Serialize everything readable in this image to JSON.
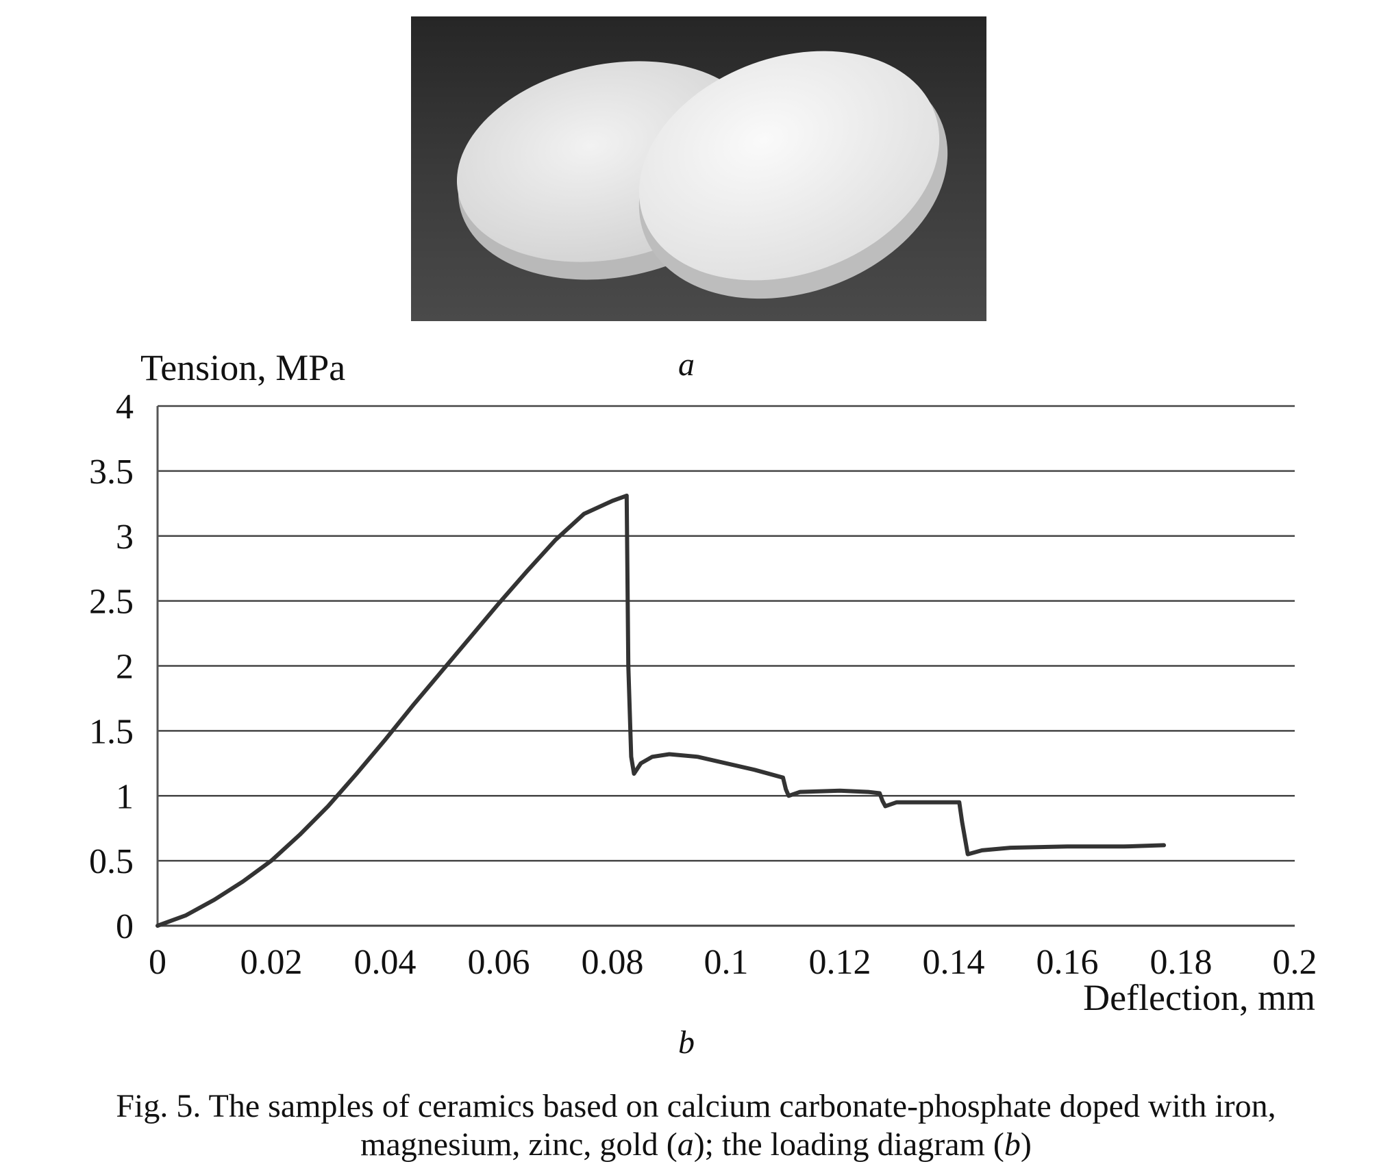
{
  "figure": {
    "panel_a_label": "a",
    "panel_b_label": "b",
    "caption": {
      "line1": "Fig. 5. The samples of ceramics based on calcium carbonate-phosphate doped with iron,",
      "line2_pre": "magnesium, zinc, gold (",
      "line2_a": "a",
      "line2_mid": "); the loading diagram (",
      "line2_b": "b",
      "line2_post": ")"
    }
  },
  "chart_data": {
    "type": "line",
    "xlabel": "Deflection, mm",
    "ylabel": "Tension, MPa",
    "xlim": [
      0,
      0.2
    ],
    "ylim": [
      0,
      4
    ],
    "x_ticks": [
      "0",
      "0.02",
      "0.04",
      "0.06",
      "0.08",
      "0.1",
      "0.12",
      "0.14",
      "0.16",
      "0.18",
      "0.2"
    ],
    "y_ticks": [
      "0",
      "0.5",
      "1",
      "1.5",
      "2",
      "2.5",
      "3",
      "3.5",
      "4"
    ],
    "grid": "horizontal",
    "series": [
      {
        "x": [
          0,
          0.005,
          0.01,
          0.015,
          0.02,
          0.025,
          0.03,
          0.035,
          0.04,
          0.045,
          0.05,
          0.055,
          0.06,
          0.065,
          0.07,
          0.075,
          0.08,
          0.0825,
          0.0828,
          0.0833,
          0.0838,
          0.085,
          0.087,
          0.09,
          0.095,
          0.1,
          0.105,
          0.11,
          0.1105,
          0.111,
          0.113,
          0.12,
          0.125,
          0.127,
          0.1275,
          0.128,
          0.13,
          0.135,
          0.141,
          0.1415,
          0.1425,
          0.145,
          0.15,
          0.16,
          0.17,
          0.177
        ],
        "y": [
          0,
          0.08,
          0.2,
          0.34,
          0.5,
          0.7,
          0.92,
          1.17,
          1.43,
          1.7,
          1.96,
          2.22,
          2.48,
          2.73,
          2.97,
          3.17,
          3.27,
          3.31,
          2.0,
          1.3,
          1.17,
          1.25,
          1.3,
          1.32,
          1.3,
          1.25,
          1.2,
          1.14,
          1.05,
          1.0,
          1.03,
          1.04,
          1.03,
          1.02,
          0.96,
          0.92,
          0.95,
          0.95,
          0.95,
          0.8,
          0.55,
          0.58,
          0.6,
          0.61,
          0.61,
          0.62
        ]
      }
    ]
  }
}
